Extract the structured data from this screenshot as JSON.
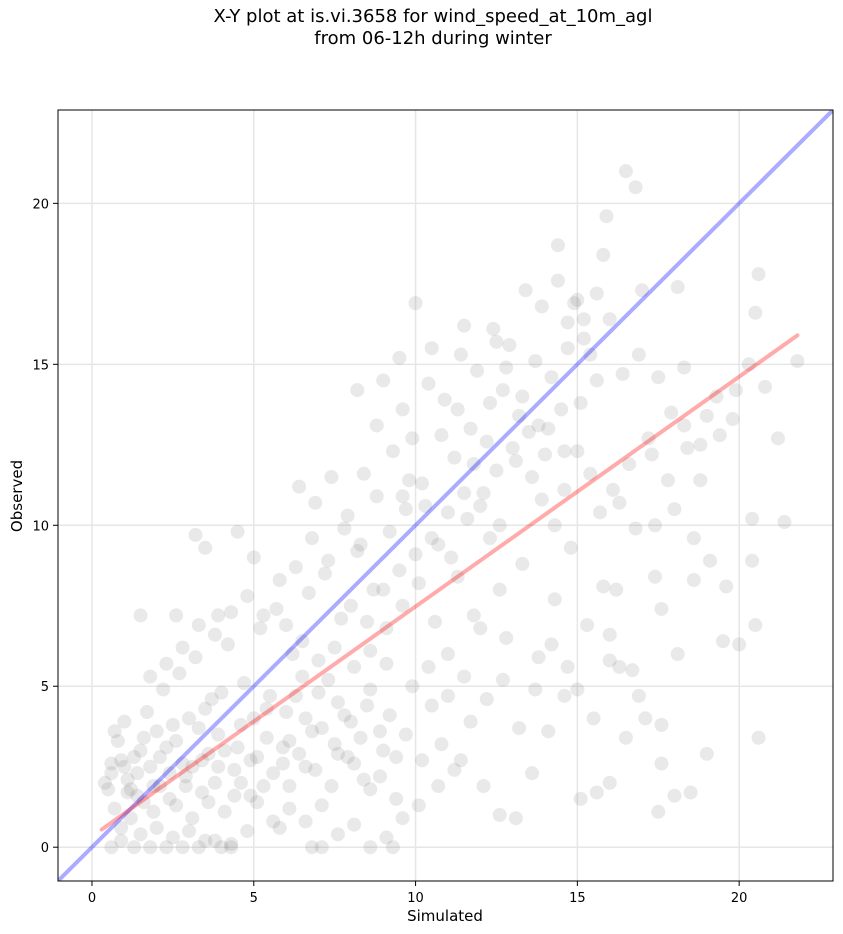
{
  "chart_data": {
    "type": "scatter",
    "title_line1": "X-Y plot at is.vi.3658 for wind_speed_at_10m_agl",
    "title_line2": "from 06-12h during winter",
    "xlabel": "Simulated",
    "ylabel": "Observed",
    "xlim": [
      -1.05,
      22.9
    ],
    "ylim": [
      -1.05,
      22.9
    ],
    "xticks": [
      0,
      5,
      10,
      15,
      20
    ],
    "yticks": [
      0,
      5,
      10,
      15,
      20
    ],
    "grid": true,
    "point_color": "#777777",
    "identity_line": {
      "color": "#0000ff",
      "from": [
        -1.05,
        -1.05
      ],
      "to": [
        22.9,
        22.9
      ]
    },
    "fit_line": {
      "color": "#ff0000",
      "from": [
        0.3,
        0.55
      ],
      "to": [
        21.8,
        15.9
      ]
    },
    "points": [
      [
        0.8,
        3.3
      ],
      [
        0.9,
        2.7
      ],
      [
        1.1,
        2.1
      ],
      [
        1.3,
        2.8
      ],
      [
        1.4,
        1.6
      ],
      [
        1.6,
        3.4
      ],
      [
        1.2,
        0.9
      ],
      [
        0.5,
        1.8
      ],
      [
        0.7,
        1.2
      ],
      [
        1.8,
        2.5
      ],
      [
        2.1,
        1.9
      ],
      [
        2.3,
        3.1
      ],
      [
        2.6,
        1.3
      ],
      [
        2.9,
        2.2
      ],
      [
        3.1,
        0.9
      ],
      [
        3.4,
        1.7
      ],
      [
        3.6,
        2.9
      ],
      [
        3.9,
        3.5
      ],
      [
        4.1,
        1.1
      ],
      [
        4.4,
        2.4
      ],
      [
        4.6,
        3.8
      ],
      [
        4.9,
        1.6
      ],
      [
        5.1,
        2.8
      ],
      [
        5.4,
        4.3
      ],
      [
        5.6,
        0.8
      ],
      [
        5.9,
        3.1
      ],
      [
        6.1,
        1.9
      ],
      [
        6.3,
        4.7
      ],
      [
        6.6,
        2.5
      ],
      [
        6.8,
        3.6
      ],
      [
        7.1,
        1.3
      ],
      [
        7.3,
        5.2
      ],
      [
        7.6,
        2.9
      ],
      [
        7.8,
        4.1
      ],
      [
        8.1,
        0.7
      ],
      [
        8.3,
        3.4
      ],
      [
        8.6,
        6.1
      ],
      [
        8.9,
        2.2
      ],
      [
        9.1,
        5.7
      ],
      [
        9.4,
        1.5
      ],
      [
        1.5,
        0.4
      ],
      [
        2.0,
        0.6
      ],
      [
        2.5,
        0.3
      ],
      [
        3.0,
        0.5
      ],
      [
        3.5,
        0.2
      ],
      [
        4.0,
        0.0
      ],
      [
        4.3,
        0.1
      ],
      [
        0.6,
        2.3
      ],
      [
        1.0,
        3.9
      ],
      [
        1.7,
        4.2
      ],
      [
        2.2,
        4.9
      ],
      [
        2.7,
        5.4
      ],
      [
        3.2,
        5.9
      ],
      [
        3.7,
        4.6
      ],
      [
        4.2,
        6.3
      ],
      [
        4.7,
        5.1
      ],
      [
        5.2,
        6.8
      ],
      [
        5.7,
        7.4
      ],
      [
        6.2,
        6.0
      ],
      [
        6.7,
        7.9
      ],
      [
        7.2,
        8.5
      ],
      [
        7.7,
        7.1
      ],
      [
        8.2,
        9.2
      ],
      [
        8.7,
        8.0
      ],
      [
        9.2,
        9.8
      ],
      [
        9.7,
        10.5
      ],
      [
        10.2,
        11.3
      ],
      [
        10.7,
        9.4
      ],
      [
        11.2,
        12.1
      ],
      [
        11.7,
        13.0
      ],
      [
        12.2,
        12.6
      ],
      [
        12.7,
        14.2
      ],
      [
        13.2,
        13.4
      ],
      [
        13.7,
        15.1
      ],
      [
        14.2,
        14.6
      ],
      [
        14.7,
        16.3
      ],
      [
        15.2,
        15.8
      ],
      [
        15.6,
        17.2
      ],
      [
        16.0,
        16.4
      ],
      [
        14.4,
        17.6
      ],
      [
        13.9,
        16.8
      ],
      [
        13.4,
        17.3
      ],
      [
        12.9,
        15.6
      ],
      [
        12.4,
        16.1
      ],
      [
        11.9,
        14.8
      ],
      [
        11.4,
        15.3
      ],
      [
        10.9,
        13.9
      ],
      [
        10.4,
        14.4
      ],
      [
        9.9,
        12.7
      ],
      [
        9.6,
        13.6
      ],
      [
        10.0,
        16.9
      ],
      [
        11.3,
        8.4
      ],
      [
        11.8,
        7.2
      ],
      [
        12.3,
        9.6
      ],
      [
        12.8,
        6.5
      ],
      [
        13.3,
        8.8
      ],
      [
        13.8,
        5.9
      ],
      [
        14.3,
        7.7
      ],
      [
        14.8,
        9.3
      ],
      [
        15.3,
        6.9
      ],
      [
        15.8,
        8.1
      ],
      [
        16.3,
        10.7
      ],
      [
        16.8,
        9.9
      ],
      [
        17.3,
        12.2
      ],
      [
        17.8,
        11.4
      ],
      [
        18.3,
        13.1
      ],
      [
        18.8,
        12.5
      ],
      [
        19.3,
        14.0
      ],
      [
        19.8,
        13.3
      ],
      [
        20.3,
        15.0
      ],
      [
        20.8,
        14.3
      ],
      [
        21.2,
        12.7
      ],
      [
        21.4,
        10.1
      ],
      [
        21.8,
        15.1
      ],
      [
        20.6,
        17.8
      ],
      [
        20.5,
        16.6
      ],
      [
        19.9,
        14.2
      ],
      [
        18.1,
        17.4
      ],
      [
        17.0,
        17.3
      ],
      [
        16.5,
        21.0
      ],
      [
        16.8,
        20.5
      ],
      [
        15.9,
        19.6
      ],
      [
        14.4,
        18.7
      ],
      [
        15.8,
        18.4
      ],
      [
        15.0,
        17.0
      ],
      [
        12.6,
        8.0
      ],
      [
        11.0,
        6.0
      ],
      [
        10.5,
        4.4
      ],
      [
        10.8,
        3.2
      ],
      [
        11.4,
        2.7
      ],
      [
        12.1,
        1.9
      ],
      [
        12.6,
        1.0
      ],
      [
        13.1,
        0.9
      ],
      [
        13.6,
        2.3
      ],
      [
        14.1,
        3.6
      ],
      [
        14.6,
        4.7
      ],
      [
        15.1,
        1.5
      ],
      [
        15.6,
        1.7
      ],
      [
        16.0,
        2.0
      ],
      [
        16.5,
        3.4
      ],
      [
        17.5,
        1.1
      ],
      [
        18.0,
        1.6
      ],
      [
        18.5,
        1.7
      ],
      [
        19.0,
        2.9
      ],
      [
        19.5,
        6.4
      ],
      [
        20.0,
        6.3
      ],
      [
        20.5,
        6.9
      ],
      [
        20.6,
        3.4
      ],
      [
        17.6,
        2.6
      ],
      [
        17.6,
        3.8
      ],
      [
        17.1,
        4.0
      ],
      [
        16.9,
        4.7
      ],
      [
        17.4,
        8.4
      ],
      [
        17.6,
        7.4
      ],
      [
        18.1,
        6.0
      ],
      [
        18.6,
        8.3
      ],
      [
        18.6,
        9.6
      ],
      [
        19.1,
        8.9
      ],
      [
        19.6,
        8.1
      ],
      [
        20.4,
        8.9
      ],
      [
        20.4,
        10.2
      ],
      [
        18.0,
        10.5
      ],
      [
        17.4,
        10.0
      ],
      [
        16.2,
        8.0
      ],
      [
        16.0,
        6.6
      ],
      [
        16.0,
        5.8
      ],
      [
        16.3,
        5.6
      ],
      [
        16.7,
        5.5
      ],
      [
        15.0,
        4.9
      ],
      [
        15.5,
        4.0
      ],
      [
        9.1,
        0.3
      ],
      [
        9.6,
        0.9
      ],
      [
        10.1,
        1.3
      ],
      [
        8.6,
        1.8
      ],
      [
        8.1,
        2.6
      ],
      [
        7.6,
        0.4
      ],
      [
        7.1,
        0.0
      ],
      [
        6.6,
        0.8
      ],
      [
        6.1,
        1.2
      ],
      [
        5.8,
        0.6
      ],
      [
        5.3,
        1.9
      ],
      [
        4.8,
        0.5
      ],
      [
        4.5,
        3.1
      ],
      [
        3.8,
        2.0
      ],
      [
        3.3,
        3.7
      ],
      [
        2.8,
        2.6
      ],
      [
        2.4,
        1.5
      ],
      [
        1.9,
        1.1
      ],
      [
        1.4,
        2.3
      ],
      [
        1.1,
        1.7
      ],
      [
        0.9,
        0.6
      ],
      [
        1.6,
        1.4
      ],
      [
        2.1,
        2.8
      ],
      [
        2.6,
        3.3
      ],
      [
        3.1,
        2.5
      ],
      [
        3.6,
        1.4
      ],
      [
        4.1,
        3.0
      ],
      [
        4.6,
        2.0
      ],
      [
        5.1,
        1.4
      ],
      [
        5.6,
        2.3
      ],
      [
        6.1,
        3.3
      ],
      [
        6.6,
        4.0
      ],
      [
        7.1,
        3.7
      ],
      [
        7.6,
        4.5
      ],
      [
        8.1,
        5.6
      ],
      [
        8.6,
        4.9
      ],
      [
        9.1,
        6.8
      ],
      [
        9.6,
        7.5
      ],
      [
        10.1,
        8.2
      ],
      [
        10.6,
        7.0
      ],
      [
        11.1,
        9.0
      ],
      [
        11.6,
        10.2
      ],
      [
        12.1,
        11.0
      ],
      [
        12.6,
        10.0
      ],
      [
        13.1,
        12.0
      ],
      [
        13.6,
        11.5
      ],
      [
        14.1,
        13.0
      ],
      [
        14.6,
        12.3
      ],
      [
        15.1,
        13.8
      ],
      [
        15.6,
        14.5
      ],
      [
        9.3,
        12.3
      ],
      [
        9.8,
        11.4
      ],
      [
        10.3,
        10.6
      ],
      [
        10.8,
        12.8
      ],
      [
        11.3,
        13.6
      ],
      [
        11.8,
        11.9
      ],
      [
        12.3,
        13.8
      ],
      [
        12.8,
        14.9
      ],
      [
        13.3,
        14.0
      ],
      [
        13.8,
        13.1
      ],
      [
        8.3,
        9.4
      ],
      [
        8.8,
        10.9
      ],
      [
        7.8,
        9.9
      ],
      [
        7.3,
        8.9
      ],
      [
        6.8,
        9.6
      ],
      [
        6.3,
        8.7
      ],
      [
        5.8,
        8.3
      ],
      [
        5.3,
        7.2
      ],
      [
        4.8,
        7.8
      ],
      [
        4.3,
        7.3
      ],
      [
        3.8,
        6.6
      ],
      [
        3.3,
        6.9
      ],
      [
        2.8,
        6.2
      ],
      [
        2.3,
        5.7
      ],
      [
        1.8,
        5.3
      ],
      [
        3.2,
        9.7
      ],
      [
        3.5,
        9.3
      ],
      [
        4.5,
        9.8
      ],
      [
        5.0,
        9.0
      ],
      [
        1.5,
        7.2
      ],
      [
        2.6,
        7.2
      ],
      [
        3.9,
        7.2
      ],
      [
        6.0,
        6.9
      ],
      [
        6.5,
        6.4
      ],
      [
        7.0,
        5.8
      ],
      [
        7.5,
        6.2
      ],
      [
        8.0,
        7.5
      ],
      [
        8.5,
        7.0
      ],
      [
        9.0,
        8.0
      ],
      [
        9.5,
        8.6
      ],
      [
        10.0,
        9.1
      ],
      [
        10.5,
        9.6
      ],
      [
        11.0,
        10.4
      ],
      [
        11.5,
        11.0
      ],
      [
        12.0,
        10.6
      ],
      [
        12.5,
        11.7
      ],
      [
        13.0,
        12.4
      ],
      [
        13.5,
        12.9
      ],
      [
        14.0,
        12.2
      ],
      [
        14.5,
        13.6
      ],
      [
        9.0,
        14.5
      ],
      [
        9.5,
        15.2
      ],
      [
        10.5,
        15.5
      ],
      [
        11.5,
        16.2
      ],
      [
        12.5,
        15.7
      ],
      [
        8.2,
        14.2
      ],
      [
        8.8,
        13.1
      ],
      [
        9.6,
        10.9
      ],
      [
        8.4,
        11.6
      ],
      [
        7.9,
        10.3
      ],
      [
        7.4,
        11.5
      ],
      [
        6.9,
        10.7
      ],
      [
        6.4,
        11.2
      ],
      [
        9.2,
        4.1
      ],
      [
        9.7,
        3.5
      ],
      [
        10.2,
        2.7
      ],
      [
        10.7,
        1.9
      ],
      [
        11.2,
        2.4
      ],
      [
        11.7,
        3.9
      ],
      [
        12.2,
        4.6
      ],
      [
        12.7,
        5.2
      ],
      [
        13.2,
        3.7
      ],
      [
        13.7,
        4.9
      ],
      [
        14.2,
        6.3
      ],
      [
        14.7,
        5.6
      ],
      [
        12.0,
        6.8
      ],
      [
        11.5,
        5.3
      ],
      [
        11.0,
        4.7
      ],
      [
        10.4,
        5.6
      ],
      [
        9.9,
        5.0
      ],
      [
        5.0,
        4.0
      ],
      [
        5.5,
        4.7
      ],
      [
        6.0,
        4.2
      ],
      [
        6.5,
        5.3
      ],
      [
        7.0,
        4.8
      ],
      [
        7.5,
        3.2
      ],
      [
        8.0,
        3.9
      ],
      [
        8.5,
        4.4
      ],
      [
        9.0,
        3.0
      ],
      [
        4.0,
        4.8
      ],
      [
        3.5,
        4.3
      ],
      [
        3.0,
        4.0
      ],
      [
        2.5,
        3.8
      ],
      [
        2.0,
        3.6
      ],
      [
        1.5,
        3.0
      ],
      [
        1.0,
        2.5
      ],
      [
        0.7,
        3.6
      ],
      [
        0.6,
        0.0
      ],
      [
        0.9,
        0.2
      ],
      [
        1.3,
        0.0
      ],
      [
        1.8,
        0.0
      ],
      [
        2.3,
        0.0
      ],
      [
        2.8,
        0.0
      ],
      [
        3.3,
        0.0
      ],
      [
        3.8,
        0.2
      ],
      [
        4.3,
        0.0
      ],
      [
        6.8,
        0.0
      ],
      [
        8.6,
        0.0
      ],
      [
        9.3,
        0.0
      ],
      [
        0.4,
        2.0
      ],
      [
        0.6,
        2.6
      ],
      [
        1.2,
        1.8
      ],
      [
        1.9,
        1.9
      ],
      [
        2.4,
        2.3
      ],
      [
        2.9,
        1.9
      ],
      [
        3.4,
        2.7
      ],
      [
        3.9,
        2.5
      ],
      [
        4.4,
        1.6
      ],
      [
        4.9,
        2.7
      ],
      [
        5.4,
        3.4
      ],
      [
        5.9,
        2.6
      ],
      [
        6.4,
        2.9
      ],
      [
        6.9,
        2.4
      ],
      [
        7.4,
        1.9
      ],
      [
        7.9,
        2.8
      ],
      [
        8.4,
        2.1
      ],
      [
        8.9,
        3.6
      ],
      [
        9.4,
        2.8
      ],
      [
        15.2,
        16.4
      ],
      [
        15.4,
        15.3
      ],
      [
        14.9,
        16.9
      ],
      [
        14.7,
        15.5
      ],
      [
        16.4,
        14.7
      ],
      [
        16.9,
        15.3
      ],
      [
        17.5,
        14.6
      ],
      [
        18.3,
        14.9
      ],
      [
        19.0,
        13.4
      ],
      [
        19.4,
        12.8
      ],
      [
        18.8,
        11.4
      ],
      [
        18.4,
        12.4
      ],
      [
        17.9,
        13.5
      ],
      [
        17.2,
        12.7
      ],
      [
        16.6,
        11.9
      ],
      [
        16.1,
        11.1
      ],
      [
        15.7,
        10.4
      ],
      [
        15.4,
        11.6
      ],
      [
        15.0,
        12.3
      ],
      [
        14.6,
        11.1
      ],
      [
        14.3,
        10.0
      ],
      [
        13.9,
        10.8
      ]
    ]
  }
}
